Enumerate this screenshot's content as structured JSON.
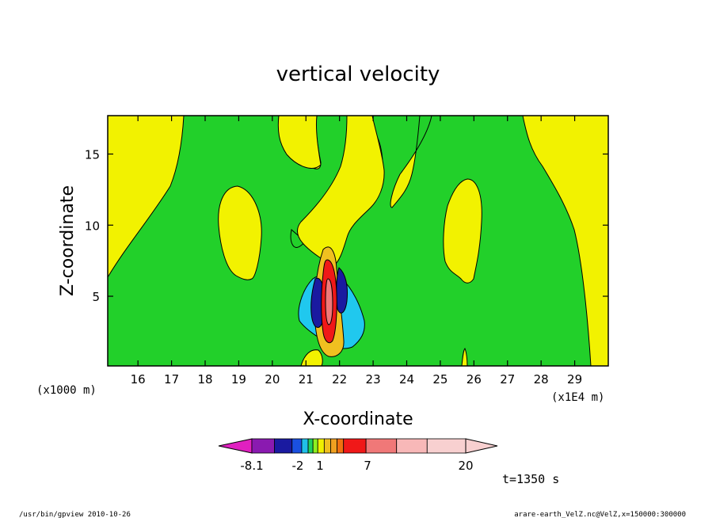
{
  "chart_data": {
    "type": "contour",
    "title": "vertical velocity",
    "xlabel": "X-coordinate",
    "ylabel": "Z-coordinate",
    "x_ticks": [
      "16",
      "17",
      "18",
      "19",
      "20",
      "21",
      "22",
      "23",
      "24",
      "25",
      "26",
      "27",
      "28",
      "29"
    ],
    "x_tick_values": [
      16,
      17,
      18,
      19,
      20,
      21,
      22,
      23,
      24,
      25,
      26,
      27,
      28,
      29
    ],
    "x_units": "(x1E4 m)",
    "xlim": [
      15.1,
      30.0
    ],
    "y_ticks": [
      "5",
      "10",
      "15"
    ],
    "y_tick_values": [
      5,
      10,
      15
    ],
    "y_units": "(x1000 m)",
    "ylim": [
      0.1,
      17.7
    ],
    "colorbar": {
      "labels": [
        "-8.1",
        "-2",
        "1",
        "7",
        "20"
      ],
      "colors": [
        "#e020c0",
        "#8a1ab0",
        "#1a1aa0",
        "#1a50e0",
        "#20c0e8",
        "#20d060",
        "#8ef020",
        "#f0f000",
        "#f0c020",
        "#f0a020",
        "#f07010",
        "#f01818",
        "#f07878",
        "#f8b8b8",
        "#f8d0d0"
      ]
    },
    "time_label": "t=1350 s"
  },
  "footer": {
    "left": "/usr/bin/gpview   2010-10-26",
    "right": "arare-earth_VelZ.nc@VelZ,x=150000:300000"
  },
  "colors": {
    "green": "#22d02a",
    "yellow": "#f2f200",
    "cyan": "#20c8ee"
  }
}
